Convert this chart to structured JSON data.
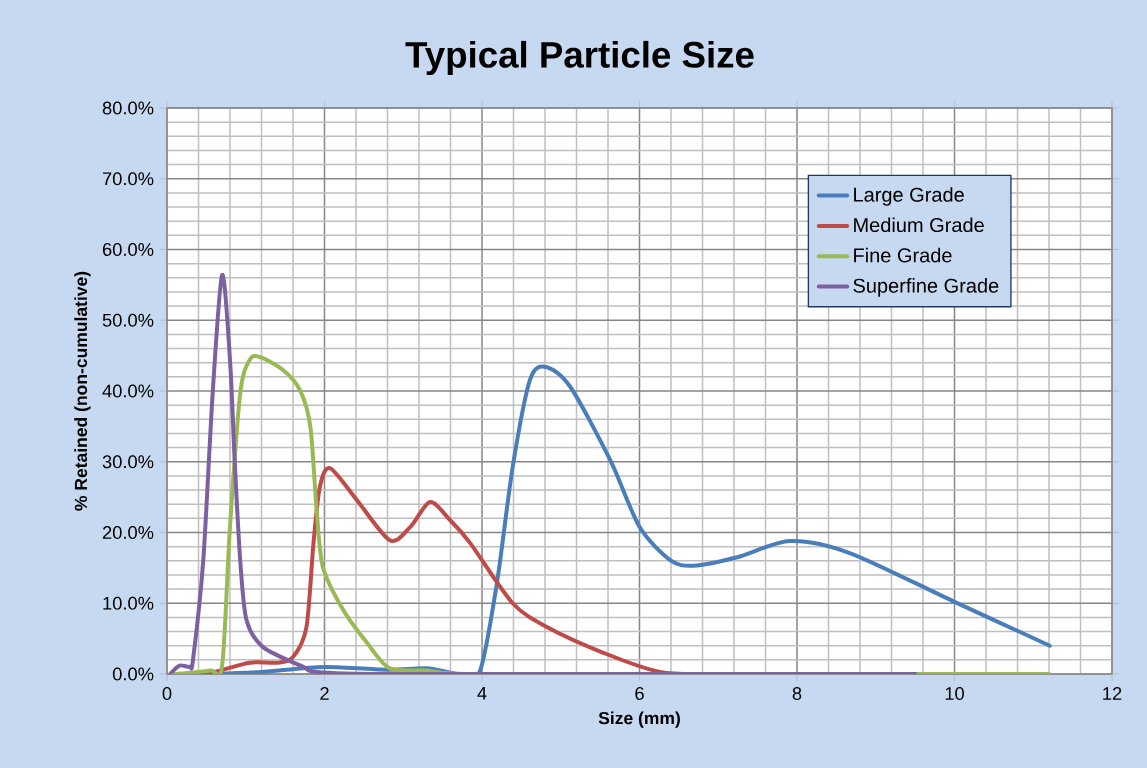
{
  "chart_data": {
    "type": "line",
    "title": "Typical Particle Size",
    "xlabel": "Size (mm)",
    "ylabel": "% Retained (non-cumulative)",
    "xlim": [
      0,
      12
    ],
    "xticks": [
      0,
      2,
      4,
      6,
      8,
      10,
      12
    ],
    "ylim": [
      0,
      80
    ],
    "yticks": [
      {
        "value": 0,
        "label": "0.0%"
      },
      {
        "value": 10,
        "label": "10.0%"
      },
      {
        "value": 20,
        "label": "20.0%"
      },
      {
        "value": 30,
        "label": "30.0%"
      },
      {
        "value": 40,
        "label": "40.0%"
      },
      {
        "value": 50,
        "label": "50.0%"
      },
      {
        "value": 60,
        "label": "60.0%"
      },
      {
        "value": 70,
        "label": "70.0%"
      },
      {
        "value": 80,
        "label": "80.0%"
      }
    ],
    "grid": true,
    "legend": "top right",
    "series": [
      {
        "name": "Large Grade",
        "color": "#4a7ebb",
        "x": [
          0.6,
          1.2,
          2.0,
          2.8,
          3.3,
          3.7,
          3.97,
          4.19,
          4.39,
          4.61,
          4.81,
          5.12,
          5.63,
          6.0,
          6.39,
          6.68,
          7.24,
          7.91,
          8.67,
          10.0,
          11.21
        ],
        "values": [
          0,
          0.3,
          1,
          0.6,
          0.8,
          0,
          0.3,
          12.9,
          29.3,
          41.6,
          43.4,
          40.6,
          30.2,
          20.8,
          16.1,
          15.3,
          16.5,
          18.8,
          17.1,
          10.2,
          4.0
        ]
      },
      {
        "name": "Medium Grade",
        "color": "#be4b48",
        "x": [
          0.3,
          0.6,
          1.05,
          1.4,
          1.6,
          1.77,
          1.86,
          1.94,
          2.07,
          2.41,
          2.83,
          3.09,
          3.34,
          3.59,
          3.85,
          4.39,
          4.83,
          5.54,
          6.26,
          7.0,
          9.5
        ],
        "values": [
          0,
          0.3,
          1.6,
          1.6,
          2.4,
          6.6,
          18.5,
          26.4,
          29.1,
          24.6,
          18.9,
          20.8,
          24.3,
          21.8,
          18.5,
          10,
          6.6,
          3,
          0.3,
          0,
          0
        ]
      },
      {
        "name": "Fine Grade",
        "color": "#98b954",
        "x": [
          0.1,
          0.55,
          0.7,
          0.8,
          0.93,
          1.05,
          1.18,
          1.47,
          1.69,
          1.82,
          1.9,
          1.98,
          2.24,
          2.54,
          2.83,
          3.3,
          3.8,
          6.0,
          11.2
        ],
        "values": [
          0,
          0.5,
          1.2,
          20.8,
          39.7,
          44.4,
          44.8,
          43,
          40.1,
          35,
          23.2,
          15.1,
          9,
          4.4,
          0.8,
          0.5,
          0,
          0,
          0
        ]
      },
      {
        "name": "Superfine Grade",
        "color": "#7d60a0",
        "x": [
          0.04,
          0.16,
          0.29,
          0.33,
          0.46,
          0.58,
          0.7,
          0.8,
          0.86,
          0.93,
          1.01,
          1.22,
          1.73,
          1.9,
          2.8,
          6.0,
          9.5
        ],
        "values": [
          0,
          1.2,
          1,
          2,
          16,
          39.7,
          56.4,
          44.4,
          30,
          16,
          7.6,
          3.8,
          1,
          0.3,
          0,
          0,
          0
        ]
      }
    ]
  }
}
